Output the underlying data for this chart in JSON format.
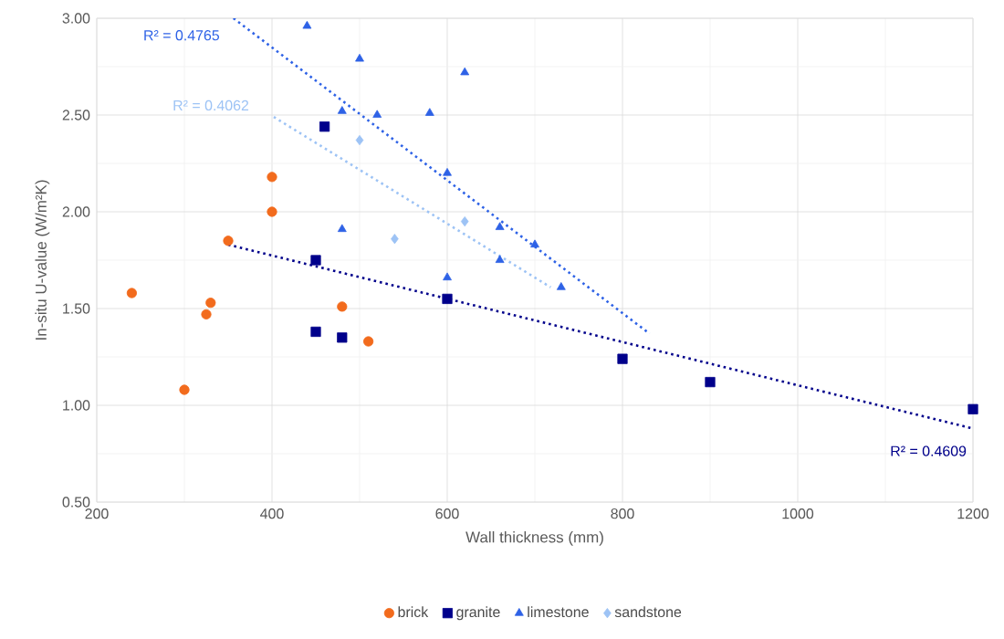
{
  "chart_data": {
    "type": "scatter",
    "xlabel": "Wall thickness (mm)",
    "ylabel": "In-situ U-value (W/m²K)",
    "xlim": [
      200,
      1200
    ],
    "ylim": [
      0.5,
      3.0
    ],
    "xticks": [
      200,
      400,
      600,
      800,
      1000,
      1200
    ],
    "yticks": [
      {
        "value": 0.5,
        "label": "0.50"
      },
      {
        "value": 1.0,
        "label": "1.00"
      },
      {
        "value": 1.5,
        "label": "1.50"
      },
      {
        "value": 2.0,
        "label": "2.00"
      },
      {
        "value": 2.5,
        "label": "2.50"
      },
      {
        "value": 3.0,
        "label": "3.00"
      }
    ],
    "grid": true,
    "legend": "bottom",
    "series": [
      {
        "name": "brick",
        "color": "#f26b1d",
        "marker": "circle",
        "x": [
          240,
          300,
          325,
          330,
          350,
          400,
          400,
          480,
          510
        ],
        "values": [
          1.58,
          1.08,
          1.47,
          1.53,
          1.85,
          2.18,
          2.0,
          1.51,
          1.33
        ]
      },
      {
        "name": "granite",
        "color": "#00008b",
        "marker": "square",
        "x": [
          450,
          460,
          450,
          480,
          600,
          800,
          900,
          1200
        ],
        "values": [
          1.75,
          2.44,
          1.38,
          1.35,
          1.55,
          1.24,
          1.12,
          0.98
        ]
      },
      {
        "name": "limestone",
        "color": "#2e62e6",
        "marker": "triangle",
        "x": [
          440,
          500,
          620,
          480,
          520,
          580,
          600,
          660,
          700,
          480,
          600,
          660,
          730
        ],
        "values": [
          2.96,
          2.79,
          2.72,
          2.52,
          2.5,
          2.51,
          2.2,
          1.92,
          1.83,
          1.91,
          1.66,
          1.75,
          1.61
        ]
      },
      {
        "name": "sandstone",
        "color": "#9dc3f5",
        "marker": "diamond",
        "x": [
          500,
          540,
          620
        ],
        "values": [
          2.37,
          1.86,
          1.95
        ]
      },
      {
        "name": "R² = 0.4765",
        "type": "line",
        "line_style": "dotted",
        "marker": "none",
        "color": "#2e62e6",
        "x": [
          356,
          831
        ],
        "values": [
          3.0,
          1.37
        ]
      },
      {
        "name": "R² = 0.4062",
        "type": "line",
        "line_style": "dotted",
        "marker": "none",
        "color": "#9dc3f5",
        "x": [
          402,
          718
        ],
        "values": [
          2.49,
          1.61
        ]
      },
      {
        "name": "R² = 0.4609",
        "type": "line",
        "line_style": "dotted",
        "marker": "none",
        "color": "#00008b",
        "x": [
          350,
          1200
        ],
        "values": [
          1.83,
          0.88
        ]
      }
    ]
  }
}
